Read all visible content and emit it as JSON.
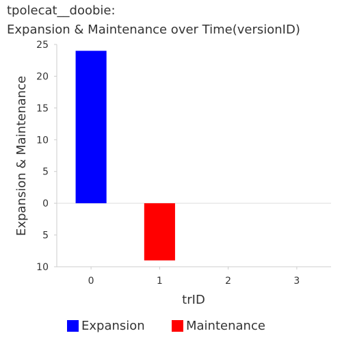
{
  "title_line1": "tpolecat__doobie:",
  "title_line2": "Expansion & Maintenance over Time(versionID)",
  "chart_data": {
    "type": "bar",
    "categories": [
      "0",
      "1",
      "2",
      "3"
    ],
    "series": [
      {
        "name": "Expansion",
        "color": "#0000ff",
        "values": [
          24,
          0,
          0,
          0
        ]
      },
      {
        "name": "Maintenance",
        "color": "#ff0000",
        "values": [
          0,
          -9,
          0,
          0
        ]
      }
    ],
    "xlabel": "trID",
    "ylabel": "Expansion & Maintenance",
    "ylim": [
      -10,
      25
    ],
    "yticks": [
      25,
      20,
      15,
      10,
      5,
      0,
      -5,
      -10
    ],
    "ytick_labels": [
      "25",
      "20",
      "15",
      "10",
      "5",
      "0",
      "5",
      "10"
    ],
    "grid": false,
    "legend_position": "bottom"
  }
}
